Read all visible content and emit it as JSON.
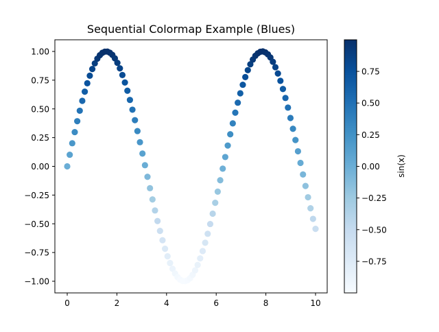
{
  "chart_data": {
    "type": "scatter",
    "title": "Sequential Colormap Example (Blues)",
    "xlabel": "",
    "ylabel": "",
    "xlim": [
      -0.5,
      10.5
    ],
    "ylim": [
      -1.1,
      1.1
    ],
    "grid": false,
    "xticks": [
      "0",
      "2",
      "4",
      "6",
      "8",
      "10"
    ],
    "xtick_values": [
      0,
      2,
      4,
      6,
      8,
      10
    ],
    "yticks": [
      "−1.00",
      "−0.75",
      "−0.50",
      "−0.25",
      "0.00",
      "0.25",
      "0.50",
      "0.75",
      "1.00"
    ],
    "ytick_values": [
      -1.0,
      -0.75,
      -0.5,
      -0.25,
      0.0,
      0.25,
      0.5,
      0.75,
      1.0
    ],
    "colormap": "Blues",
    "colorbar": {
      "label": "sin(x)",
      "range": [
        -1.0,
        1.0
      ],
      "ticks": [
        "−0.75",
        "−0.50",
        "−0.25",
        "0.00",
        "0.25",
        "0.50",
        "0.75"
      ],
      "tick_values": [
        -0.75,
        -0.5,
        -0.25,
        0.0,
        0.25,
        0.5,
        0.75
      ]
    },
    "series": [
      {
        "name": "sin(x)",
        "color_by": "y",
        "x": [
          0.0,
          0.101,
          0.202,
          0.303,
          0.404,
          0.505,
          0.606,
          0.707,
          0.808,
          0.909,
          1.01,
          1.111,
          1.212,
          1.313,
          1.414,
          1.515,
          1.616,
          1.717,
          1.818,
          1.919,
          2.02,
          2.121,
          2.222,
          2.323,
          2.424,
          2.525,
          2.626,
          2.727,
          2.828,
          2.929,
          3.03,
          3.131,
          3.232,
          3.333,
          3.434,
          3.535,
          3.636,
          3.737,
          3.838,
          3.939,
          4.04,
          4.141,
          4.242,
          4.343,
          4.444,
          4.545,
          4.646,
          4.747,
          4.848,
          4.949,
          5.051,
          5.152,
          5.253,
          5.354,
          5.455,
          5.556,
          5.657,
          5.758,
          5.859,
          5.96,
          6.061,
          6.162,
          6.263,
          6.364,
          6.465,
          6.566,
          6.667,
          6.768,
          6.869,
          6.97,
          7.071,
          7.172,
          7.273,
          7.374,
          7.475,
          7.576,
          7.677,
          7.778,
          7.879,
          7.98,
          8.081,
          8.182,
          8.283,
          8.384,
          8.485,
          8.586,
          8.687,
          8.788,
          8.889,
          8.99,
          9.091,
          9.192,
          9.293,
          9.394,
          9.495,
          9.596,
          9.697,
          9.798,
          9.899,
          10.0
        ],
        "y": [
          0.0,
          0.101,
          0.201,
          0.298,
          0.393,
          0.484,
          0.57,
          0.65,
          0.723,
          0.789,
          0.847,
          0.896,
          0.937,
          0.967,
          0.988,
          0.998,
          0.999,
          0.989,
          0.97,
          0.94,
          0.901,
          0.853,
          0.795,
          0.73,
          0.658,
          0.578,
          0.493,
          0.402,
          0.307,
          0.21,
          0.111,
          0.01,
          -0.091,
          -0.19,
          -0.288,
          -0.384,
          -0.476,
          -0.562,
          -0.643,
          -0.717,
          -0.783,
          -0.842,
          -0.892,
          -0.933,
          -0.964,
          -0.986,
          -0.998,
          -0.999,
          -0.991,
          -0.973,
          -0.944,
          -0.905,
          -0.858,
          -0.801,
          -0.737,
          -0.665,
          -0.587,
          -0.502,
          -0.412,
          -0.317,
          -0.22,
          -0.121,
          -0.02,
          0.081,
          0.181,
          0.279,
          0.374,
          0.467,
          0.554,
          0.636,
          0.71,
          0.777,
          0.837,
          0.888,
          0.929,
          0.962,
          0.984,
          0.997,
          1.0,
          0.992,
          0.975,
          0.948,
          0.91,
          0.863,
          0.808,
          0.744,
          0.673,
          0.595,
          0.511,
          0.421,
          0.327,
          0.229,
          0.131,
          0.03,
          -0.071,
          -0.171,
          -0.269,
          -0.365,
          -0.457,
          -0.544
        ]
      }
    ]
  },
  "colors": {
    "axes": "#000000",
    "background": "#ffffff",
    "blues_stops": [
      "#f7fbff",
      "#deebf7",
      "#c6dbef",
      "#9ecae1",
      "#6baed6",
      "#4292c6",
      "#2171b5",
      "#08519c",
      "#08306b"
    ]
  }
}
